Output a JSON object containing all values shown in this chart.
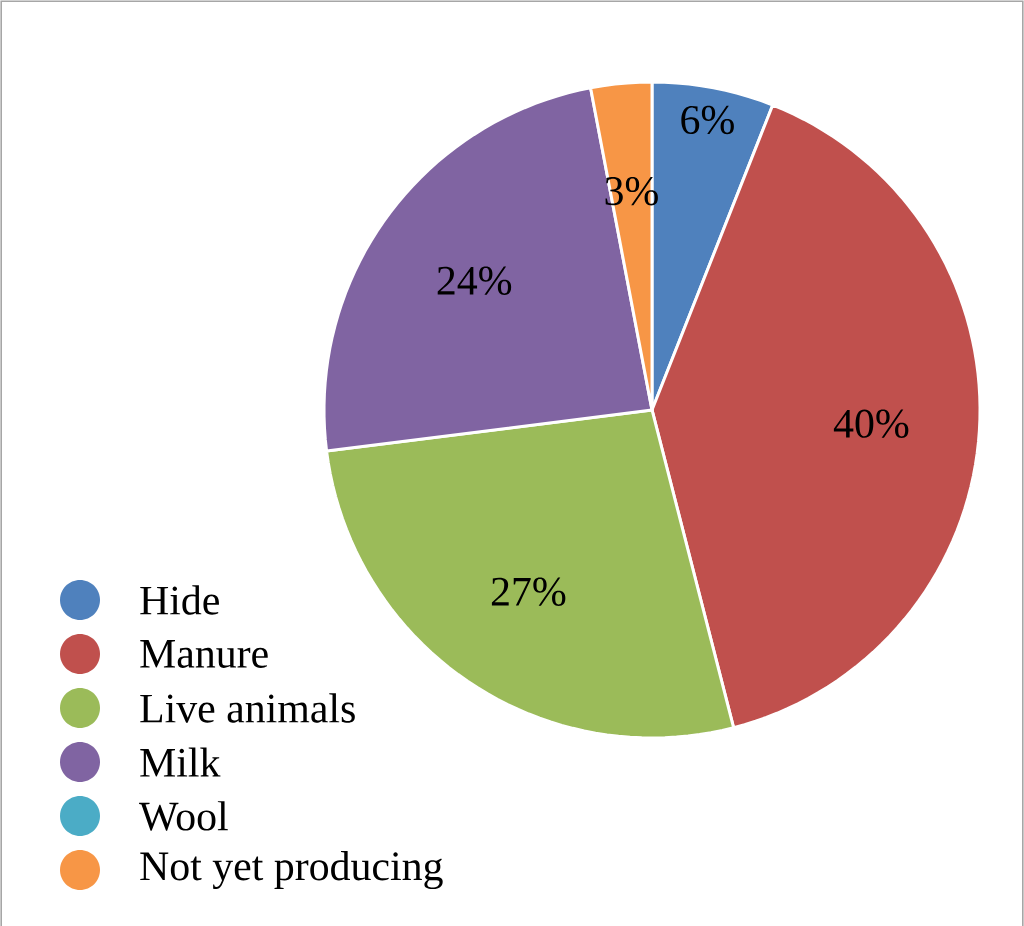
{
  "chart_data": {
    "type": "pie",
    "categories": [
      "Hide",
      "Manure",
      "Live animals",
      "Milk",
      "Wool",
      "Not yet producing"
    ],
    "values": [
      6,
      40,
      27,
      24,
      0,
      3
    ],
    "value_labels": [
      "6%",
      "40%",
      "27%",
      "24%",
      null,
      "3%"
    ],
    "colors": [
      "#4f81bd",
      "#c0504d",
      "#9bbb59",
      "#8064a2",
      "#4bacc6",
      "#f79646"
    ],
    "legend": "bottom left"
  }
}
